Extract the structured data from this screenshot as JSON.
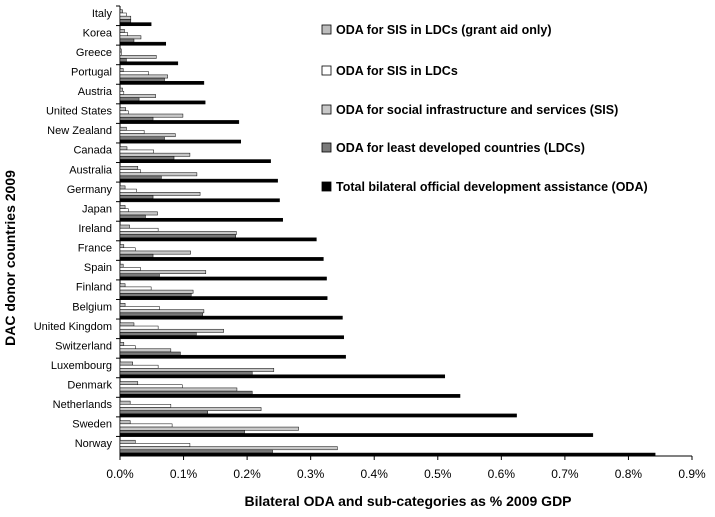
{
  "chart_data": {
    "type": "bar",
    "orientation": "horizontal",
    "title": "",
    "xlabel": "Bilateral ODA and sub-categories as % 2009 GDP",
    "ylabel": "DAC donor countries 2009",
    "xlim": [
      0,
      0.9
    ],
    "xticks": [
      "0.0%",
      "0.1%",
      "0.2%",
      "0.3%",
      "0.4%",
      "0.5%",
      "0.6%",
      "0.7%",
      "0.8%",
      "0.9%"
    ],
    "legend_position": "top-right",
    "categories": [
      "Italy",
      "Korea",
      "Greece",
      "Portugal",
      "Austria",
      "United States",
      "New Zealand",
      "Canada",
      "Australia",
      "Germany",
      "Japan",
      "Ireland",
      "France",
      "Spain",
      "Finland",
      "Belgium",
      "United Kingdom",
      "Switzerland",
      "Luxembourg",
      "Denmark",
      "Netherlands",
      "Sweden",
      "Norway"
    ],
    "series": [
      {
        "name": "ODA for SIS in LDCs (grant aid only)",
        "color": "#bdbdbd",
        "values": [
          0.004,
          0.007,
          0.002,
          0.005,
          0.004,
          0.009,
          0.01,
          0.011,
          0.028,
          0.008,
          0.008,
          0.015,
          0.006,
          0.005,
          0.008,
          0.008,
          0.022,
          0.006,
          0.02,
          0.028,
          0.016,
          0.016,
          0.024
        ]
      },
      {
        "name": "ODA for SIS in LDCs",
        "color": "#ffffff",
        "values": [
          0.01,
          0.012,
          0.002,
          0.045,
          0.006,
          0.013,
          0.038,
          0.053,
          0.032,
          0.026,
          0.013,
          0.06,
          0.024,
          0.032,
          0.049,
          0.062,
          0.06,
          0.024,
          0.06,
          0.098,
          0.08,
          0.082,
          0.11
        ]
      },
      {
        "name": "ODA for social infrastructure and services (SIS)",
        "color": "#c8c8c8",
        "values": [
          0.017,
          0.033,
          0.057,
          0.075,
          0.056,
          0.099,
          0.087,
          0.11,
          0.121,
          0.126,
          0.059,
          0.183,
          0.111,
          0.135,
          0.115,
          0.132,
          0.163,
          0.08,
          0.242,
          0.184,
          0.222,
          0.281,
          0.342
        ]
      },
      {
        "name": "ODA for least developed countries (LDCs)",
        "color": "#7a7a7a",
        "values": [
          0.017,
          0.022,
          0.01,
          0.07,
          0.03,
          0.052,
          0.07,
          0.085,
          0.065,
          0.052,
          0.04,
          0.182,
          0.052,
          0.062,
          0.112,
          0.13,
          0.12,
          0.095,
          0.208,
          0.208,
          0.138,
          0.196,
          0.24
        ]
      },
      {
        "name": "Total bilateral official development assistance (ODA)",
        "color": "#000000",
        "values": [
          0.049,
          0.072,
          0.091,
          0.132,
          0.134,
          0.187,
          0.19,
          0.237,
          0.248,
          0.251,
          0.256,
          0.309,
          0.32,
          0.325,
          0.326,
          0.35,
          0.352,
          0.355,
          0.511,
          0.535,
          0.624,
          0.744,
          0.842
        ]
      }
    ]
  }
}
